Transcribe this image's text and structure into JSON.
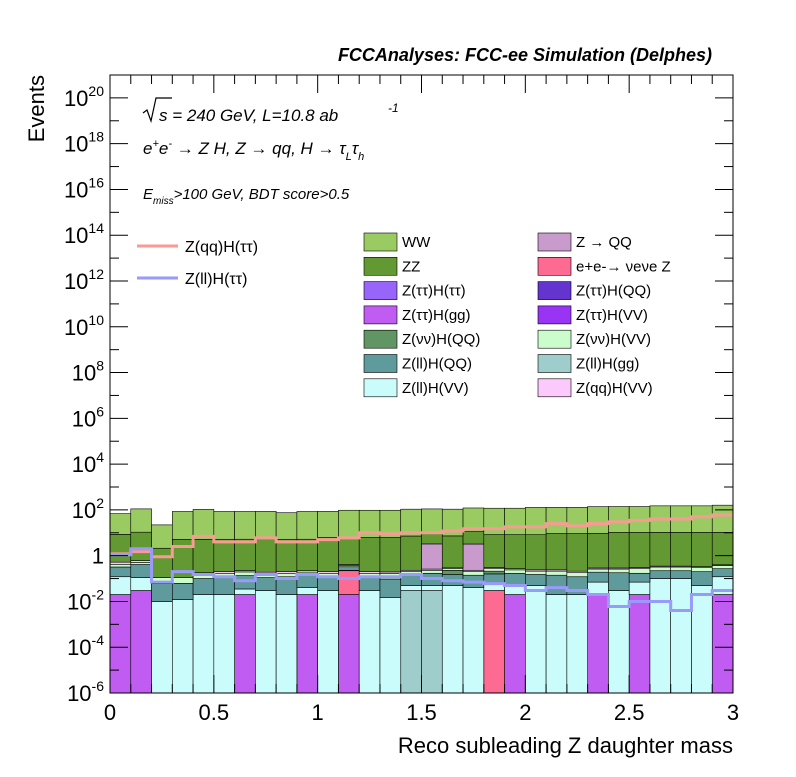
{
  "header": {
    "title": "FCCAnalyses: FCC-ee Simulation (Delphes)"
  },
  "annotations": {
    "energy": "√s = 240 GeV, L=10.8 ab",
    "lumi_exp": "-1",
    "process": "e+e- → Z H, Z → qq, H → τLτh",
    "cuts": "Emiss>100 GeV, BDT score>0.5"
  },
  "chart_data": {
    "type": "bar",
    "stacked": true,
    "xlabel": "Reco subleading Z daughter mass",
    "ylabel": "Events",
    "xlim": [
      0,
      3
    ],
    "ylim": [
      1e-06,
      1e+21
    ],
    "ylog": true,
    "bin_width": 0.1,
    "xticks": [
      "0",
      "0.5",
      "1",
      "1.5",
      "2",
      "2.5",
      "3"
    ],
    "yticks": [
      {
        "base": "10",
        "exp": "20",
        "value": 1e+20
      },
      {
        "base": "10",
        "exp": "18",
        "value": 1e+18
      },
      {
        "base": "10",
        "exp": "16",
        "value": 1e+16
      },
      {
        "base": "10",
        "exp": "14",
        "value": 100000000000000.0
      },
      {
        "base": "10",
        "exp": "12",
        "value": 1000000000000.0
      },
      {
        "base": "10",
        "exp": "10",
        "value": 10000000000.0
      },
      {
        "base": "10",
        "exp": "8",
        "value": 100000000.0
      },
      {
        "base": "10",
        "exp": "6",
        "value": 1000000.0
      },
      {
        "base": "10",
        "exp": "4",
        "value": 10000.0
      },
      {
        "base": "10",
        "exp": "2",
        "value": 100.0
      },
      {
        "base": "1",
        "exp": "",
        "value": 1
      },
      {
        "base": "10",
        "exp": "-2",
        "value": 0.01
      },
      {
        "base": "10",
        "exp": "-4",
        "value": 0.0001
      },
      {
        "base": "10",
        "exp": "-6",
        "value": 1e-06
      }
    ],
    "stack_layers": [
      {
        "name": "Z(ττ)H(gg)",
        "color": "#c05cf2",
        "values": [
          0.02,
          0.03,
          0,
          0,
          0,
          0,
          0.02,
          0,
          0,
          0.02,
          0,
          0.02,
          0,
          0,
          0,
          0,
          0,
          0,
          0,
          0.02,
          0,
          0,
          0,
          0.02,
          0,
          0.02,
          0,
          0,
          0,
          0.02
        ]
      },
      {
        "name": "e+e-→ νeνe Z",
        "color": "#fd6a92",
        "values": [
          0,
          0,
          0,
          0,
          0,
          0,
          0,
          0,
          0,
          0,
          0,
          0.2,
          0,
          0,
          0,
          0,
          0,
          0,
          0.03,
          0,
          0,
          0,
          0,
          0,
          0,
          0,
          0,
          0,
          0,
          0
        ]
      },
      {
        "name": "Z(ll)H(gg)",
        "color": "#9fcdcb",
        "values": [
          0,
          0,
          0,
          0,
          0,
          0,
          0,
          0,
          0,
          0,
          0,
          0,
          0,
          0,
          0.03,
          0.03,
          0,
          0,
          0,
          0,
          0,
          0,
          0,
          0,
          0,
          0,
          0,
          0,
          0,
          0
        ]
      },
      {
        "name": "Z(ll)H(VV)",
        "color": "#cbfcfc",
        "values": [
          0.1,
          0.08,
          0.01,
          0.012,
          0.02,
          0.02,
          0.015,
          0.03,
          0.02,
          0.02,
          0.03,
          0.008,
          0.03,
          0.015,
          0.02,
          0.02,
          0.05,
          0.04,
          0.03,
          0.03,
          0.05,
          0.02,
          0.02,
          0.05,
          0.03,
          0.05,
          0.1,
          0.1,
          0.05,
          0.1
        ]
      },
      {
        "name": "Z(ll)H(QQ)",
        "color": "#5f9a9d",
        "values": [
          0.2,
          0.3,
          0.05,
          0.05,
          0.08,
          0.1,
          0.1,
          0.08,
          0.1,
          0.1,
          0.08,
          0.1,
          0.08,
          0.08,
          0.1,
          0.12,
          0.1,
          0.1,
          0.1,
          0.12,
          0.1,
          0.12,
          0.1,
          0.12,
          0.15,
          0.1,
          0.12,
          0.12,
          0.15,
          0.15
        ]
      },
      {
        "name": "Z(νν)H(QQ)",
        "color": "#619664",
        "values": [
          0,
          0,
          0,
          0,
          0,
          0,
          0,
          0,
          0,
          0,
          0,
          0,
          0,
          0,
          0,
          0,
          0.08,
          0,
          0.05,
          0,
          0,
          0,
          0,
          0,
          0,
          0,
          0,
          0,
          0,
          0
        ]
      },
      {
        "name": "Z(νν)H(VV)",
        "color": "#cbfccb",
        "values": [
          0.1,
          0.1,
          0.05,
          0.05,
          0.05,
          0.05,
          0.06,
          0.05,
          0.05,
          0.05,
          0.06,
          0.05,
          0.06,
          0.07,
          0.05,
          0.06,
          0.05,
          0.06,
          0.06,
          0.07,
          0.06,
          0.07,
          0.06,
          0.07,
          0.08,
          0.1,
          0.1,
          0.1,
          0.1,
          0.1
        ]
      },
      {
        "name": "Z(qq)H(VV)",
        "color": "#fcc9fc",
        "values": [
          0.1,
          0.1,
          0,
          0,
          0.03,
          0.03,
          0.03,
          0.03,
          0.03,
          0.03,
          0.03,
          0.03,
          0.03,
          0.03,
          0.03,
          0.03,
          0.03,
          0.03,
          0.03,
          0.03,
          0.03,
          0.03,
          0.03,
          0.03,
          0.03,
          0.03,
          0.03,
          0.03,
          0.03,
          0.03
        ]
      },
      {
        "name": "Z → QQ",
        "color": "#c99bcd",
        "values": [
          0,
          0,
          0,
          0,
          0,
          0,
          0,
          0,
          0,
          0,
          0,
          0,
          0,
          0,
          0,
          3,
          0,
          3,
          0,
          0,
          0,
          0,
          0,
          0,
          0,
          0,
          0,
          0,
          0,
          0
        ]
      },
      {
        "name": "ZZ",
        "color": "#629932",
        "values": [
          8,
          10,
          2,
          5,
          5,
          5,
          5,
          6,
          5,
          5,
          6,
          6,
          6,
          6,
          7,
          7,
          7,
          8,
          8,
          8,
          8,
          9,
          9,
          9,
          10,
          10,
          10,
          10,
          10,
          10
        ]
      },
      {
        "name": "WW",
        "color": "#9acb63",
        "values": [
          60,
          100,
          20,
          80,
          100,
          80,
          80,
          80,
          70,
          80,
          80,
          90,
          90,
          90,
          100,
          100,
          100,
          110,
          110,
          110,
          120,
          120,
          120,
          130,
          130,
          130,
          140,
          140,
          140,
          150
        ]
      }
    ],
    "lines": [
      {
        "name": "Z(qq)H(ττ)",
        "color": "#fa9a94",
        "values": [
          1.2,
          1.5,
          0.9,
          2.5,
          7,
          4,
          4,
          6,
          4,
          4,
          5,
          6,
          10,
          9,
          10,
          10,
          12,
          15,
          15,
          18,
          18,
          25,
          20,
          25,
          30,
          35,
          40,
          40,
          50,
          60
        ]
      },
      {
        "name": "Z(ll)H(ττ)",
        "color": "#9a9afa",
        "values": [
          1.1,
          2,
          0.07,
          0.2,
          0.15,
          0.12,
          0.08,
          0.15,
          0.1,
          0.15,
          0.12,
          0.1,
          0.12,
          0.12,
          0.15,
          0.1,
          0.08,
          0.07,
          0.06,
          0.05,
          0.03,
          0.04,
          0.03,
          0.02,
          0.006,
          0.01,
          0.01,
          0.004,
          0.02,
          0.03
        ]
      }
    ],
    "legend_lines": [
      "Z(qq)H(ττ)",
      "Z(ll)H(ττ)"
    ],
    "legend": [
      {
        "label": "WW",
        "color": "#9acb63"
      },
      {
        "label": "Z → QQ",
        "color": "#c99bcd"
      },
      {
        "label": "ZZ",
        "color": "#629932"
      },
      {
        "label": "e+e-→ νeνe Z",
        "color": "#fd6a92"
      },
      {
        "label": "Z(ττ)H(ττ)",
        "color": "#9865fa"
      },
      {
        "label": "Z(ττ)H(QQ)",
        "color": "#6335ce"
      },
      {
        "label": "Z(ττ)H(gg)",
        "color": "#c05cf2"
      },
      {
        "label": "Z(ττ)H(VV)",
        "color": "#9934f5"
      },
      {
        "label": "Z(νν)H(QQ)",
        "color": "#619664"
      },
      {
        "label": "Z(νν)H(VV)",
        "color": "#cbfccb"
      },
      {
        "label": "Z(ll)H(QQ)",
        "color": "#5f9a9d"
      },
      {
        "label": "Z(ll)H(gg)",
        "color": "#9fcdcb"
      },
      {
        "label": "Z(ll)H(VV)",
        "color": "#cbfcfc"
      },
      {
        "label": "Z(qq)H(VV)",
        "color": "#fcc9fc"
      }
    ]
  }
}
